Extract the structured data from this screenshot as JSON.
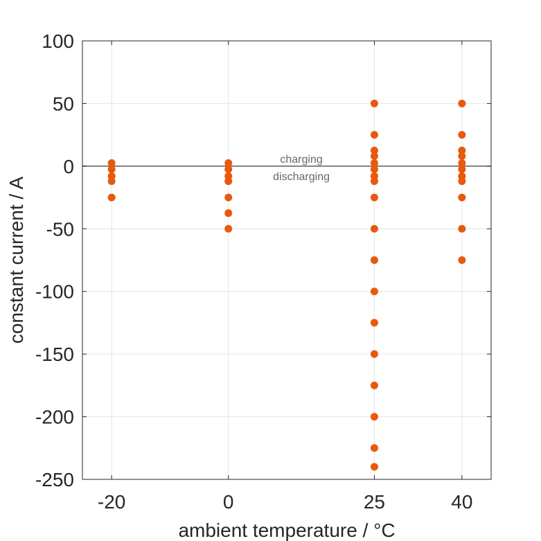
{
  "chart_data": {
    "type": "scatter",
    "title": "",
    "xlabel": "ambient temperature / °C",
    "ylabel": "constant current / A",
    "x_ticks": [
      -20,
      0,
      25,
      40
    ],
    "y_ticks": [
      100,
      50,
      0,
      -50,
      -100,
      -150,
      -200,
      -250
    ],
    "xlim": [
      -25,
      45
    ],
    "ylim": [
      -250,
      100
    ],
    "grid": true,
    "reference_line": {
      "y": 0,
      "color": "#666666"
    },
    "annotations": {
      "above": "charging",
      "below": "discharging"
    },
    "marker_color": "#E8590C",
    "points": [
      {
        "x": -20,
        "y": 2.5
      },
      {
        "x": -20,
        "y": -2.5
      },
      {
        "x": -20,
        "y": -8
      },
      {
        "x": -20,
        "y": -12
      },
      {
        "x": -20,
        "y": -25
      },
      {
        "x": 0,
        "y": 2.5
      },
      {
        "x": 0,
        "y": -2.5
      },
      {
        "x": 0,
        "y": -8
      },
      {
        "x": 0,
        "y": -12
      },
      {
        "x": 0,
        "y": -25
      },
      {
        "x": 0,
        "y": -37.5
      },
      {
        "x": 0,
        "y": -50
      },
      {
        "x": 25,
        "y": 50
      },
      {
        "x": 25,
        "y": 25
      },
      {
        "x": 25,
        "y": 12.5
      },
      {
        "x": 25,
        "y": 8
      },
      {
        "x": 25,
        "y": 2.5
      },
      {
        "x": 25,
        "y": -2.5
      },
      {
        "x": 25,
        "y": -8
      },
      {
        "x": 25,
        "y": -12
      },
      {
        "x": 25,
        "y": -25
      },
      {
        "x": 25,
        "y": -50
      },
      {
        "x": 25,
        "y": -75
      },
      {
        "x": 25,
        "y": -100
      },
      {
        "x": 25,
        "y": -125
      },
      {
        "x": 25,
        "y": -150
      },
      {
        "x": 25,
        "y": -175
      },
      {
        "x": 25,
        "y": -200
      },
      {
        "x": 25,
        "y": -225
      },
      {
        "x": 25,
        "y": -240
      },
      {
        "x": 40,
        "y": 50
      },
      {
        "x": 40,
        "y": 25
      },
      {
        "x": 40,
        "y": 12.5
      },
      {
        "x": 40,
        "y": 8
      },
      {
        "x": 40,
        "y": 2.5
      },
      {
        "x": 40,
        "y": -2.5
      },
      {
        "x": 40,
        "y": -8
      },
      {
        "x": 40,
        "y": -12
      },
      {
        "x": 40,
        "y": -25
      },
      {
        "x": 40,
        "y": -50
      },
      {
        "x": 40,
        "y": -75
      }
    ]
  }
}
